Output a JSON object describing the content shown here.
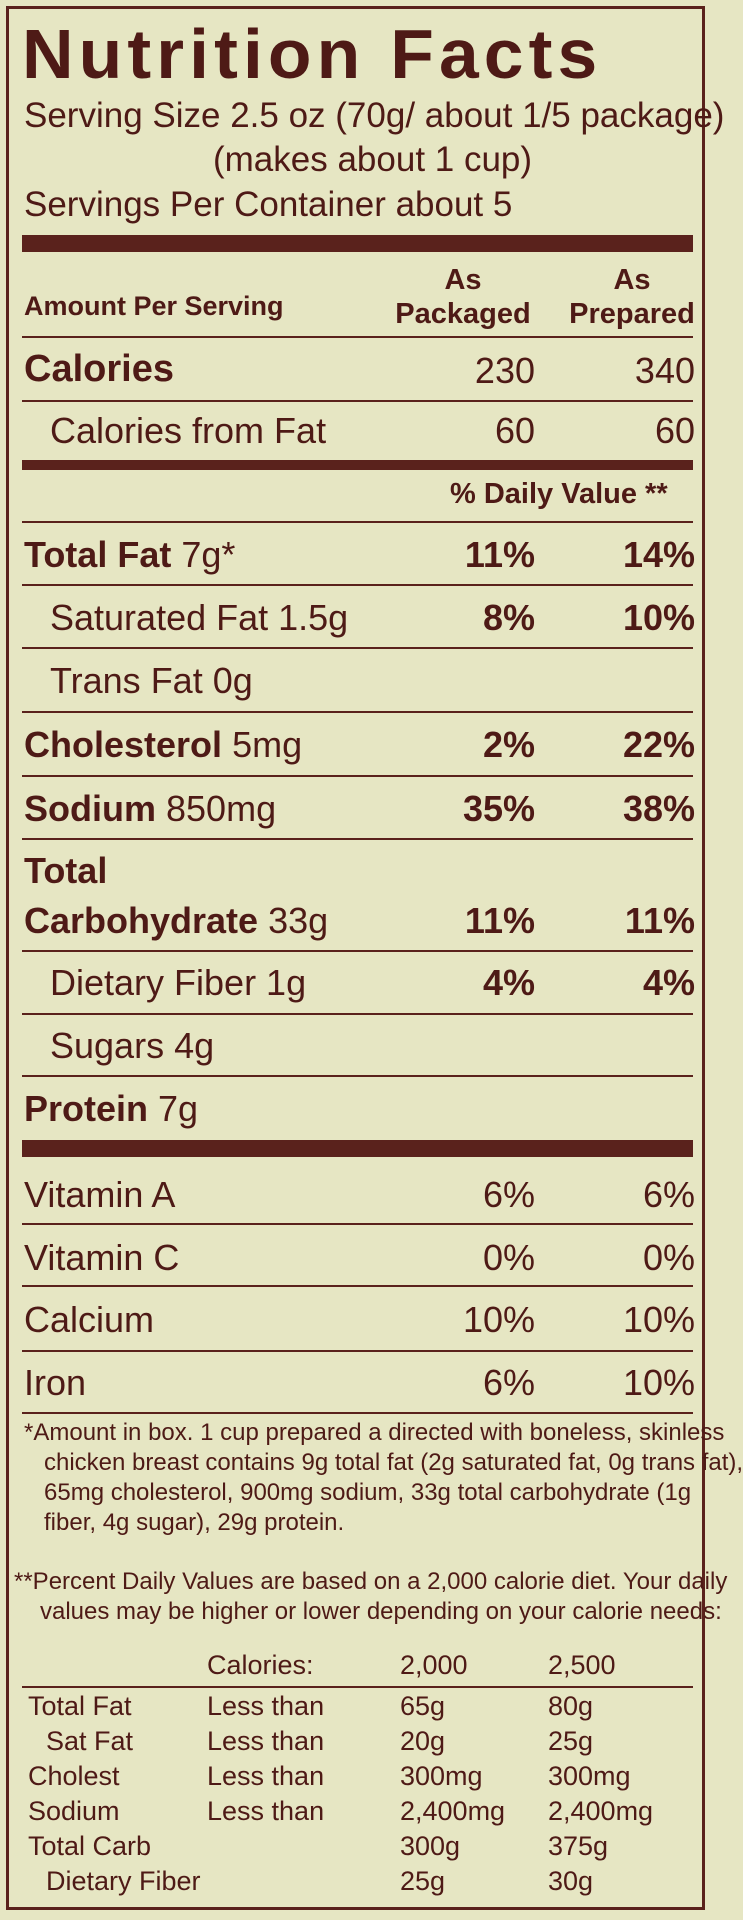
{
  "title": "Nutrition Facts",
  "serving_size_line1": "Serving Size 2.5 oz (70g/ about 1/5 package)",
  "serving_size_line2": "(makes about 1 cup)",
  "servings_per_container": "Servings Per Container about 5",
  "header": {
    "amount_per_serving": "Amount Per Serving",
    "col1": "As Packaged",
    "col2": "As Prepared",
    "daily_value": "% Daily Value **"
  },
  "calories": {
    "label": "Calories",
    "packaged": "230",
    "prepared": "340"
  },
  "calories_from_fat": {
    "label": "Calories from Fat",
    "packaged": "60",
    "prepared": "60"
  },
  "nutrients": [
    {
      "name": "Total Fat",
      "amount": "7g*",
      "packaged": "11%",
      "prepared": "14%"
    },
    {
      "name": "Saturated Fat 1.5g",
      "packaged": "8%",
      "prepared": "10%"
    },
    {
      "name": "Trans Fat 0g"
    },
    {
      "name": "Cholesterol",
      "amount": "5mg",
      "packaged": "2%",
      "prepared": "22%"
    },
    {
      "name": "Sodium",
      "amount": "850mg",
      "packaged": "35%",
      "prepared": "38%"
    },
    {
      "name1": "Total",
      "name2": "Carbohydrate",
      "amount": "33g",
      "packaged": "11%",
      "prepared": "11%"
    },
    {
      "name": "Dietary Fiber 1g",
      "packaged": "4%",
      "prepared": "4%"
    },
    {
      "name": "Sugars 4g"
    },
    {
      "name": "Protein",
      "amount": "7g"
    }
  ],
  "vitamins": [
    {
      "name": "Vitamin A",
      "packaged": "6%",
      "prepared": "6%"
    },
    {
      "name": "Vitamin C",
      "packaged": "0%",
      "prepared": "0%"
    },
    {
      "name": "Calcium",
      "packaged": "10%",
      "prepared": "10%"
    },
    {
      "name": "Iron",
      "packaged": "6%",
      "prepared": "10%"
    }
  ],
  "footnote1": [
    "*Amount in box. 1 cup prepared a directed with boneless, skinless",
    "chicken breast contains 9g total fat (2g saturated fat, 0g trans fat),",
    "65mg cholesterol, 900mg sodium, 33g total carbohydrate (1g",
    "fiber, 4g sugar), 29g protein."
  ],
  "footnote2": [
    "**Percent Daily Values are based on a 2,000 calorie diet. Your daily",
    "values may be higher or lower depending on your calorie needs:"
  ],
  "dv_table": {
    "header": {
      "label": "Calories:",
      "c1": "2,000",
      "c2": "2,500"
    },
    "rows": [
      {
        "name": "Total Fat",
        "qual": "Less than",
        "c1": "65g",
        "c2": "80g"
      },
      {
        "name": "Sat Fat",
        "qual": "Less than",
        "c1": "20g",
        "c2": "25g"
      },
      {
        "name": "Cholest",
        "qual": "Less than",
        "c1": "300mg",
        "c2": "300mg"
      },
      {
        "name": "Sodium",
        "qual": "Less than",
        "c1": "2,400mg",
        "c2": "2,400mg"
      },
      {
        "name": "Total Carb",
        "qual": "",
        "c1": "300g",
        "c2": "375g"
      },
      {
        "name": "Dietary Fiber",
        "qual": "",
        "c1": "25g",
        "c2": "30g"
      }
    ]
  },
  "colors": {
    "background": "#e6e6c3",
    "ink": "#4e1a16",
    "rule": "#5a221c"
  }
}
